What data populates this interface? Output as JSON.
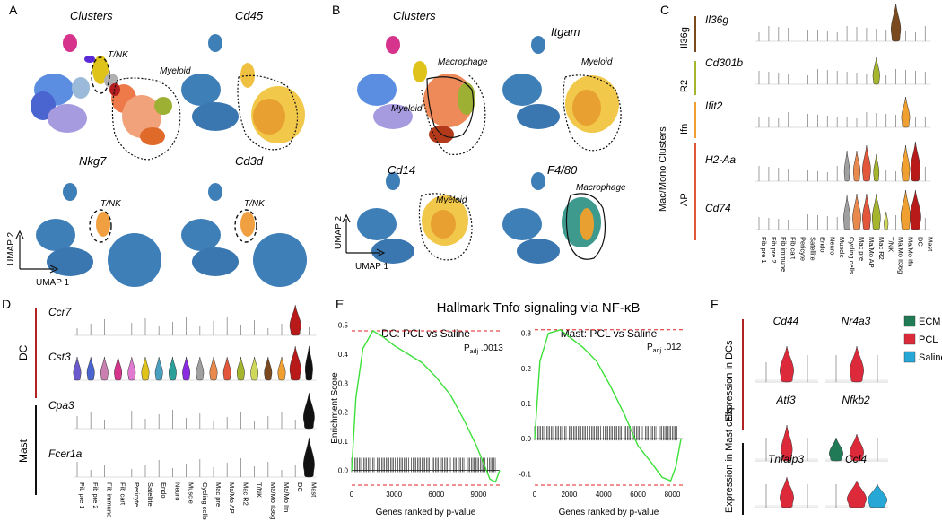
{
  "panels": {
    "A": {
      "letter": "A",
      "umaps": [
        {
          "title": "Clusters",
          "labels": [
            "T/NK",
            "Myeloid"
          ]
        },
        {
          "title": "Cd45",
          "labels": []
        },
        {
          "title": "Nkg7",
          "labels": [
            "T/NK"
          ]
        },
        {
          "title": "Cd3d",
          "labels": [
            "T/NK"
          ]
        }
      ],
      "axis_x": "UMAP 1",
      "axis_y": "UMAP 2"
    },
    "B": {
      "letter": "B",
      "umaps": [
        {
          "title": "Clusters",
          "labels": [
            "Macrophage",
            "Myeloid"
          ]
        },
        {
          "title": "Itgam",
          "labels": [
            "Myeloid"
          ]
        },
        {
          "title": "Cd14",
          "labels": [
            "Myeloid"
          ]
        },
        {
          "title": "F4/80",
          "labels": [
            "Macrophage"
          ]
        }
      ],
      "axis_x": "UMAP 1",
      "axis_y": "UMAP 2"
    },
    "C": {
      "letter": "C",
      "ylabel": "Mac/Mono Clusters",
      "groups": [
        {
          "name": "Il36g",
          "genes": [
            "Il36g"
          ],
          "color": "#7a4a1e"
        },
        {
          "name": "R2",
          "genes": [
            "Cd301b"
          ],
          "color": "#a6b52e"
        },
        {
          "name": "Ifn",
          "genes": [
            "Ifit2"
          ],
          "color": "#f0a030"
        },
        {
          "name": "AP",
          "genes": [
            "H2-Aa",
            "Cd74"
          ],
          "color": "#e2573b"
        }
      ],
      "clusters": [
        "Fib pre 1",
        "Fib pre 2",
        "Fib immune",
        "Fib cart",
        "Pericyte",
        "Satellite",
        "Endo",
        "Neuro",
        "Muscle",
        "Cycling cells",
        "Mac pre",
        "Ma/Mo AP",
        "Mac R2",
        "T/NK",
        "Ma/Mo Il36g",
        "Ma/Mo Ifn",
        "DC",
        "Mast"
      ]
    },
    "D": {
      "letter": "D",
      "groups": [
        {
          "name": "DC",
          "genes": [
            "Ccr7",
            "Cst3"
          ],
          "color": "#b22222"
        },
        {
          "name": "Mast",
          "genes": [
            "Cpa3",
            "Fcer1a"
          ],
          "color": "#111111"
        }
      ],
      "clusters": [
        "Fib pre 1",
        "Fib pre 2",
        "Fib immune",
        "Fib cart",
        "Pericyte",
        "Satellite",
        "Endo",
        "Neuro",
        "Muscle",
        "Cycling cells",
        "Mac pre",
        "Ma/Mo AP",
        "Mac R2",
        "T/NK",
        "Ma/Mo Il36g",
        "Ma/Mo Ifn",
        "DC",
        "Mast"
      ]
    },
    "E": {
      "letter": "E",
      "title": "Hallmark Tnfα signaling via NF-κB",
      "ylabel": "Enrichment Score",
      "xlabel": "Genes ranked by p-value",
      "padj_prefix": "P",
      "padj_sub": "adj"
    },
    "F": {
      "letter": "F",
      "row1": "Expression in DCs",
      "row2": "Expression in Mast cells",
      "genes": [
        "Cd44",
        "Nr4a3",
        "Atf3",
        "Nfkb2",
        "Tnfaip3",
        "Ccl4"
      ],
      "legend": [
        {
          "name": "ECM",
          "color": "#1f7a55"
        },
        {
          "name": "PCL",
          "color": "#dc2a3a"
        },
        {
          "name": "Saline",
          "color": "#27a7d6"
        }
      ]
    }
  },
  "chart_data": [
    {
      "type": "line",
      "title": "DC: PCL vs Saline",
      "xlabel": "Genes ranked by p-value",
      "ylabel": "Enrichment Score",
      "padj": ".0013",
      "xticks": [
        0,
        3000,
        6000,
        9000
      ],
      "yticks": [
        0.0,
        0.1,
        0.2,
        0.3,
        0.4,
        0.5
      ],
      "xlim": [
        0,
        10500
      ],
      "ylim": [
        -0.06,
        0.52
      ],
      "max_es": 0.48,
      "series": [
        {
          "x": [
            0,
            300,
            800,
            1500,
            2200,
            3000,
            4000,
            5000,
            6000,
            7000,
            8000,
            8800,
            9400,
            9800,
            10200,
            10500
          ],
          "values": [
            0.0,
            0.25,
            0.42,
            0.48,
            0.46,
            0.43,
            0.4,
            0.37,
            0.32,
            0.26,
            0.17,
            0.09,
            0.02,
            -0.03,
            -0.04,
            0.0
          ]
        }
      ]
    },
    {
      "type": "line",
      "title": "Mast: PCL vs Saline",
      "xlabel": "Genes ranked by p-value",
      "ylabel": "",
      "padj": ".012",
      "xticks": [
        0,
        2000,
        4000,
        6000,
        8000
      ],
      "yticks": [
        -0.1,
        0.0,
        0.1,
        0.2,
        0.3
      ],
      "xlim": [
        0,
        8600
      ],
      "ylim": [
        -0.14,
        0.34
      ],
      "max_es": 0.31,
      "series": [
        {
          "x": [
            0,
            300,
            800,
            1500,
            2000,
            2800,
            3600,
            4400,
            5200,
            6000,
            6800,
            7400,
            7900,
            8200,
            8500
          ],
          "values": [
            0.0,
            0.22,
            0.3,
            0.31,
            0.29,
            0.26,
            0.22,
            0.15,
            0.07,
            -0.02,
            -0.07,
            -0.11,
            -0.12,
            -0.08,
            0.0
          ]
        }
      ]
    }
  ]
}
